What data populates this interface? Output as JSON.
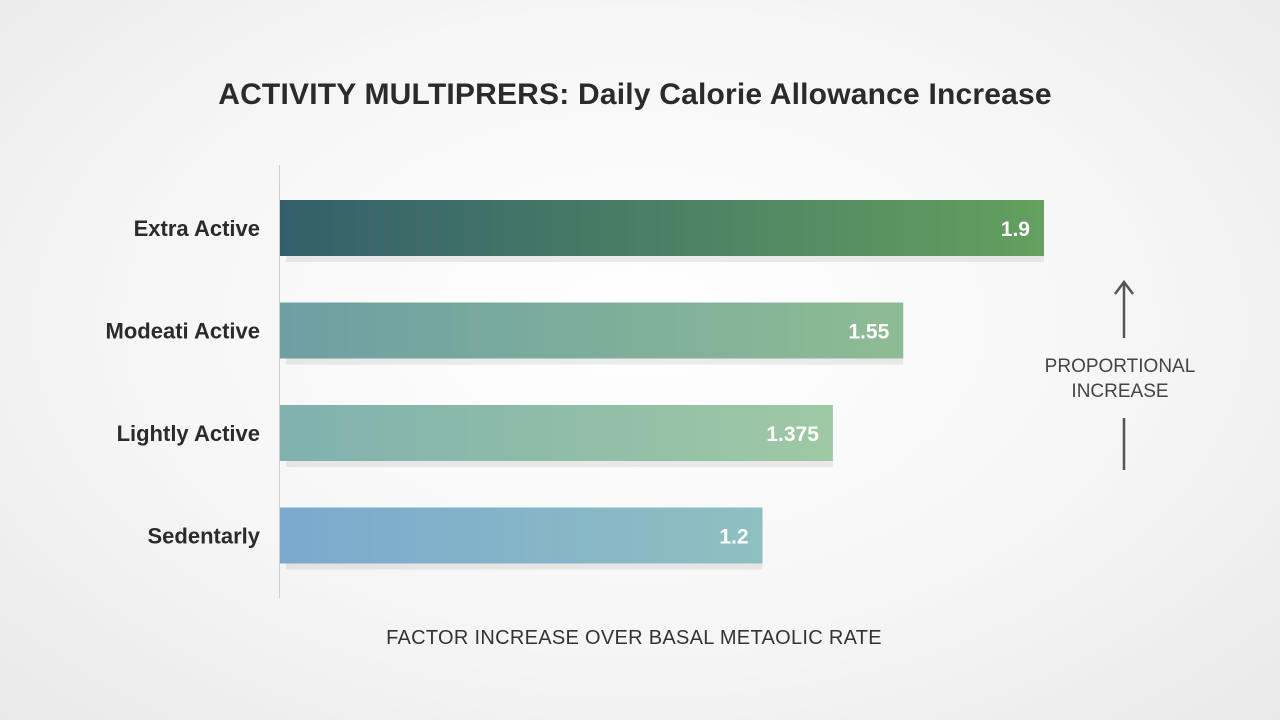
{
  "chart_data": {
    "type": "bar",
    "orientation": "horizontal",
    "title": "ACTIVITY MULTIPRERS: Daily Calorie Allowance Increase",
    "xlabel": "FACTOR INCREASE OVER BASAL METAOLIC RATE",
    "ylabel": "",
    "categories": [
      "Extra Active",
      "Modeati Active",
      "Lightly Active",
      "Sedentarly"
    ],
    "values": [
      1.9,
      1.55,
      1.375,
      1.2
    ],
    "value_labels": [
      "1.9",
      "1.55",
      "1.375",
      "1.2"
    ],
    "xlim": [
      0,
      1.9
    ],
    "grid": false,
    "annotation": {
      "lines": [
        "PROPORTIONAL",
        "INCREASE"
      ]
    },
    "bar_gradients": [
      [
        "#335f6b",
        "#64a05e"
      ],
      [
        "#6e9fa3",
        "#8dbc94"
      ],
      [
        "#80b1ae",
        "#9fc8a4"
      ],
      [
        "#7aa9cf",
        "#8fc0c0"
      ]
    ],
    "label_color": "#ffffff",
    "text_color": "#2b2b2b"
  }
}
